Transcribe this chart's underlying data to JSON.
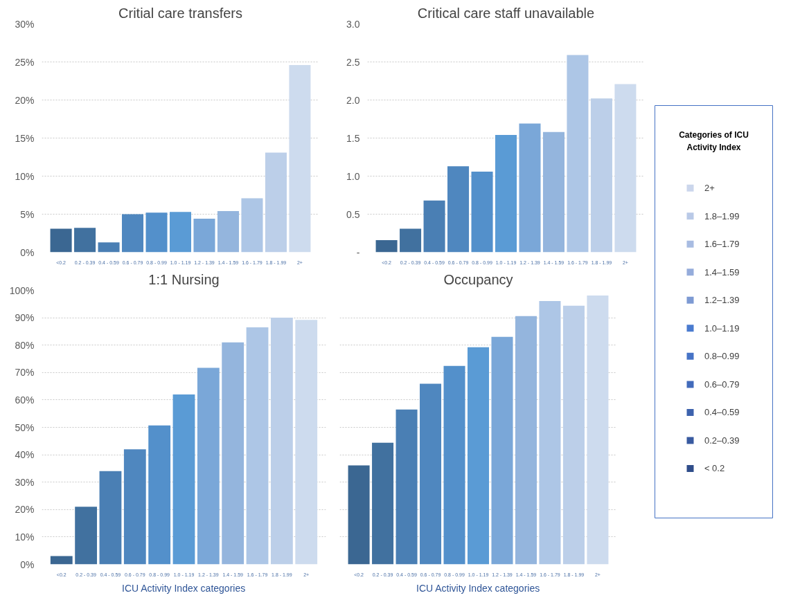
{
  "chart_data": [
    {
      "type": "bar",
      "title": "Critial care transfers",
      "categories": [
        "<0.2",
        "0.2 - 0.39",
        "0.4 - 0.59",
        "0.6 - 0.79",
        "0.8 - 0.99",
        "1.0 - 1.19",
        "1.2 - 1.39",
        "1.4 - 1.59",
        "1.6 - 1.79",
        "1.8 - 1.99",
        "2+"
      ],
      "values": [
        3.1,
        3.2,
        1.3,
        5.0,
        5.2,
        5.3,
        4.4,
        5.4,
        7.1,
        13.1,
        24.6
      ],
      "colors": [
        "#3b6792",
        "#41719f",
        "#4a7fb4",
        "#4f87bf",
        "#5390cb",
        "#5a9bd5",
        "#7aa7d8",
        "#94b5dd",
        "#adc6e6",
        "#bccfe9",
        "#cddbee"
      ],
      "ylim": [
        0,
        30
      ],
      "yticks": [
        {
          "value": 0,
          "label": "0%"
        },
        {
          "value": 5,
          "label": "5%"
        },
        {
          "value": 10,
          "label": "10%"
        },
        {
          "value": 15,
          "label": "15%"
        },
        {
          "value": 20,
          "label": "20%"
        },
        {
          "value": 25,
          "label": "25%"
        },
        {
          "value": 30,
          "label": "30%"
        }
      ],
      "grid": "y"
    },
    {
      "type": "bar",
      "title": "Critical care staff unavailable",
      "categories": [
        "<0.2",
        "0.2 - 0.39",
        "0.4 - 0.59",
        "0.6 - 0.79",
        "0.8 - 0.99",
        "1.0 - 1.19",
        "1.2 - 1.39",
        "1.4 - 1.59",
        "1.6 - 1.79",
        "1.8 - 1.99",
        "2+"
      ],
      "values": [
        0.16,
        0.31,
        0.68,
        1.13,
        1.06,
        1.54,
        1.69,
        1.58,
        2.59,
        2.02,
        2.21
      ],
      "colors": [
        "#3b6792",
        "#41719f",
        "#4a7fb4",
        "#4f87bf",
        "#5390cb",
        "#5a9bd5",
        "#7aa7d8",
        "#94b5dd",
        "#adc6e6",
        "#bccfe9",
        "#cddbee"
      ],
      "ylim": [
        0,
        3
      ],
      "yticks": [
        {
          "value": 0,
          "label": "-"
        },
        0.5,
        {
          "value": 1,
          "label": "1.0"
        },
        1.5,
        {
          "value": 2,
          "label": "2.0"
        },
        2.5,
        {
          "value": 3,
          "label": "3.0"
        }
      ],
      "grid": "y"
    },
    {
      "type": "bar",
      "title": "1:1 Nursing",
      "xlabel": "ICU Activity Index categories",
      "categories": [
        "<0.2",
        "0.2 - 0.39",
        "0.4 - 0.59",
        "0.6 - 0.79",
        "0.8 - 0.99",
        "1.0 - 1.19",
        "1.2 - 1.39",
        "1.4 - 1.59",
        "1.6 - 1.79",
        "1.8 - 1.99",
        "2+"
      ],
      "values": [
        3,
        21,
        34,
        42,
        50.7,
        62,
        71.7,
        81,
        86.5,
        90,
        89.2
      ],
      "colors": [
        "#3b6792",
        "#41719f",
        "#4a7fb4",
        "#4f87bf",
        "#5390cb",
        "#5a9bd5",
        "#7aa7d8",
        "#94b5dd",
        "#adc6e6",
        "#bccfe9",
        "#cddbee"
      ],
      "ylim": [
        0,
        100
      ],
      "yticks": [
        {
          "value": 0,
          "label": "0%"
        },
        {
          "value": 10,
          "label": "10%"
        },
        {
          "value": 20,
          "label": "20%"
        },
        {
          "value": 30,
          "label": "30%"
        },
        {
          "value": 40,
          "label": "40%"
        },
        {
          "value": 50,
          "label": "50%"
        },
        {
          "value": 60,
          "label": "60%"
        },
        {
          "value": 70,
          "label": "70%"
        },
        {
          "value": 80,
          "label": "80%"
        },
        {
          "value": 90,
          "label": "90%"
        },
        {
          "value": 100,
          "label": "100%"
        }
      ],
      "grid": "y"
    },
    {
      "type": "bar",
      "title": "Occupancy",
      "xlabel": "ICU Activity Index categories",
      "categories": [
        "<0.2",
        "0.2 - 0.39",
        "0.4 - 0.59",
        "0.6 - 0.79",
        "0.8 - 0.99",
        "1.0 - 1.19",
        "1.2 - 1.39",
        "1.4 - 1.59",
        "1.6 - 1.79",
        "1.8 - 1.99",
        "2+"
      ],
      "values": [
        36.1,
        44.4,
        56.5,
        65.9,
        72.4,
        79.2,
        83.0,
        90.6,
        96.1,
        94.4,
        98.1
      ],
      "colors": [
        "#3b6792",
        "#41719f",
        "#4a7fb4",
        "#4f87bf",
        "#5390cb",
        "#5a9bd5",
        "#7aa7d8",
        "#94b5dd",
        "#adc6e6",
        "#bccfe9",
        "#cddbee"
      ],
      "ylim": [
        0,
        100
      ],
      "yticks": [
        {
          "value": 0,
          "label": "0%"
        },
        {
          "value": 10,
          "label": "10%"
        },
        {
          "value": 20,
          "label": "20%"
        },
        {
          "value": 30,
          "label": "30%"
        },
        {
          "value": 40,
          "label": "40%"
        },
        {
          "value": 50,
          "label": "50%"
        },
        {
          "value": 60,
          "label": "60%"
        },
        {
          "value": 70,
          "label": "70%"
        },
        {
          "value": 80,
          "label": "80%"
        },
        {
          "value": 90,
          "label": "90%"
        },
        {
          "value": 100,
          "label": "100%"
        }
      ],
      "grid": "y",
      "tick_labels": "x"
    },
    {
      "type": "other",
      "title": "Categories of ICU Activity Index",
      "categories": [
        "2+",
        "1.8–1.99",
        "1.6–1.79",
        "1.4–1.59",
        "1.2–1.39",
        "1.0–1.19",
        "0.8–0.99",
        "0.6–0.79",
        "0.4–0.59",
        "0.2–0.39",
        "< 0.2"
      ],
      "colors": [
        "#cbd6ec",
        "#b9c9e7",
        "#a8bce2",
        "#95acdb",
        "#7d9ad3",
        "#4a7bcf",
        "#4673c6",
        "#426bbb",
        "#3d62ad",
        "#385aa0",
        "#2f4d8a"
      ]
    }
  ]
}
